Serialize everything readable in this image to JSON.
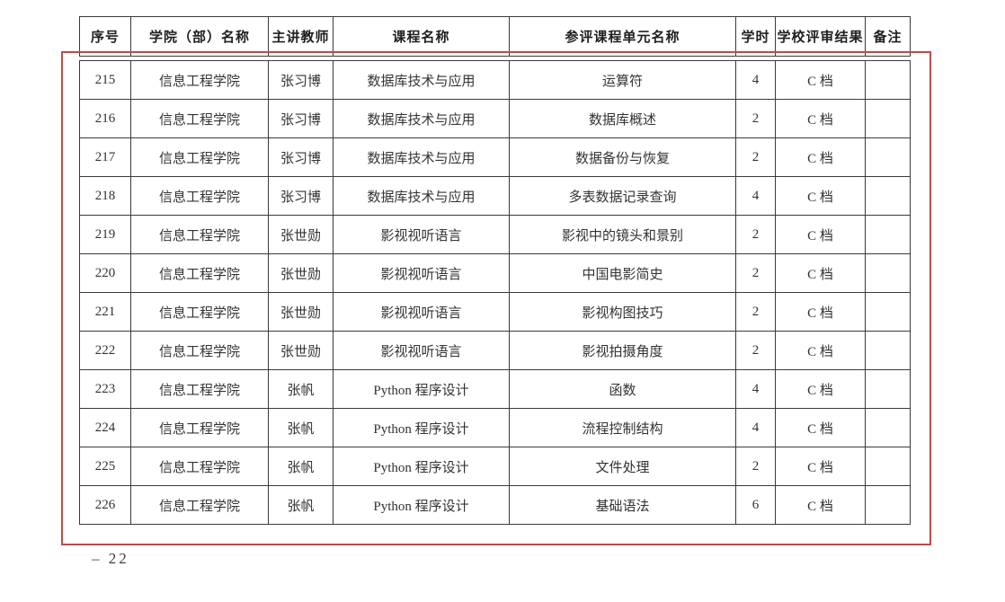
{
  "page": {
    "footer_page_number": "– 22",
    "accent_red": "#bf4a47"
  },
  "table": {
    "columns": [
      {
        "key": "index",
        "label": "序号"
      },
      {
        "key": "college",
        "label": "学院（部）名称"
      },
      {
        "key": "teacher",
        "label": "主讲教师"
      },
      {
        "key": "course",
        "label": "课程名称"
      },
      {
        "key": "unit",
        "label": "参评课程单元名称"
      },
      {
        "key": "hours",
        "label": "学时"
      },
      {
        "key": "result",
        "label": "学校评审结果"
      },
      {
        "key": "remark",
        "label": "备注"
      }
    ],
    "rows": [
      [
        "215",
        "信息工程学院",
        "张习博",
        "数据库技术与应用",
        "运算符",
        "4",
        "C 档",
        ""
      ],
      [
        "216",
        "信息工程学院",
        "张习博",
        "数据库技术与应用",
        "数据库概述",
        "2",
        "C 档",
        ""
      ],
      [
        "217",
        "信息工程学院",
        "张习博",
        "数据库技术与应用",
        "数据备份与恢复",
        "2",
        "C 档",
        ""
      ],
      [
        "218",
        "信息工程学院",
        "张习博",
        "数据库技术与应用",
        "多表数据记录查询",
        "4",
        "C 档",
        ""
      ],
      [
        "219",
        "信息工程学院",
        "张世勋",
        "影视视听语言",
        "影视中的镜头和景别",
        "2",
        "C 档",
        ""
      ],
      [
        "220",
        "信息工程学院",
        "张世勋",
        "影视视听语言",
        "中国电影简史",
        "2",
        "C 档",
        ""
      ],
      [
        "221",
        "信息工程学院",
        "张世勋",
        "影视视听语言",
        "影视构图技巧",
        "2",
        "C 档",
        ""
      ],
      [
        "222",
        "信息工程学院",
        "张世勋",
        "影视视听语言",
        "影视拍摄角度",
        "2",
        "C 档",
        ""
      ],
      [
        "223",
        "信息工程学院",
        "张帆",
        "Python 程序设计",
        "函数",
        "4",
        "C 档",
        ""
      ],
      [
        "224",
        "信息工程学院",
        "张帆",
        "Python 程序设计",
        "流程控制结构",
        "4",
        "C 档",
        ""
      ],
      [
        "225",
        "信息工程学院",
        "张帆",
        "Python 程序设计",
        "文件处理",
        "2",
        "C 档",
        ""
      ],
      [
        "226",
        "信息工程学院",
        "张帆",
        "Python 程序设计",
        "基础语法",
        "6",
        "C 档",
        ""
      ]
    ]
  }
}
